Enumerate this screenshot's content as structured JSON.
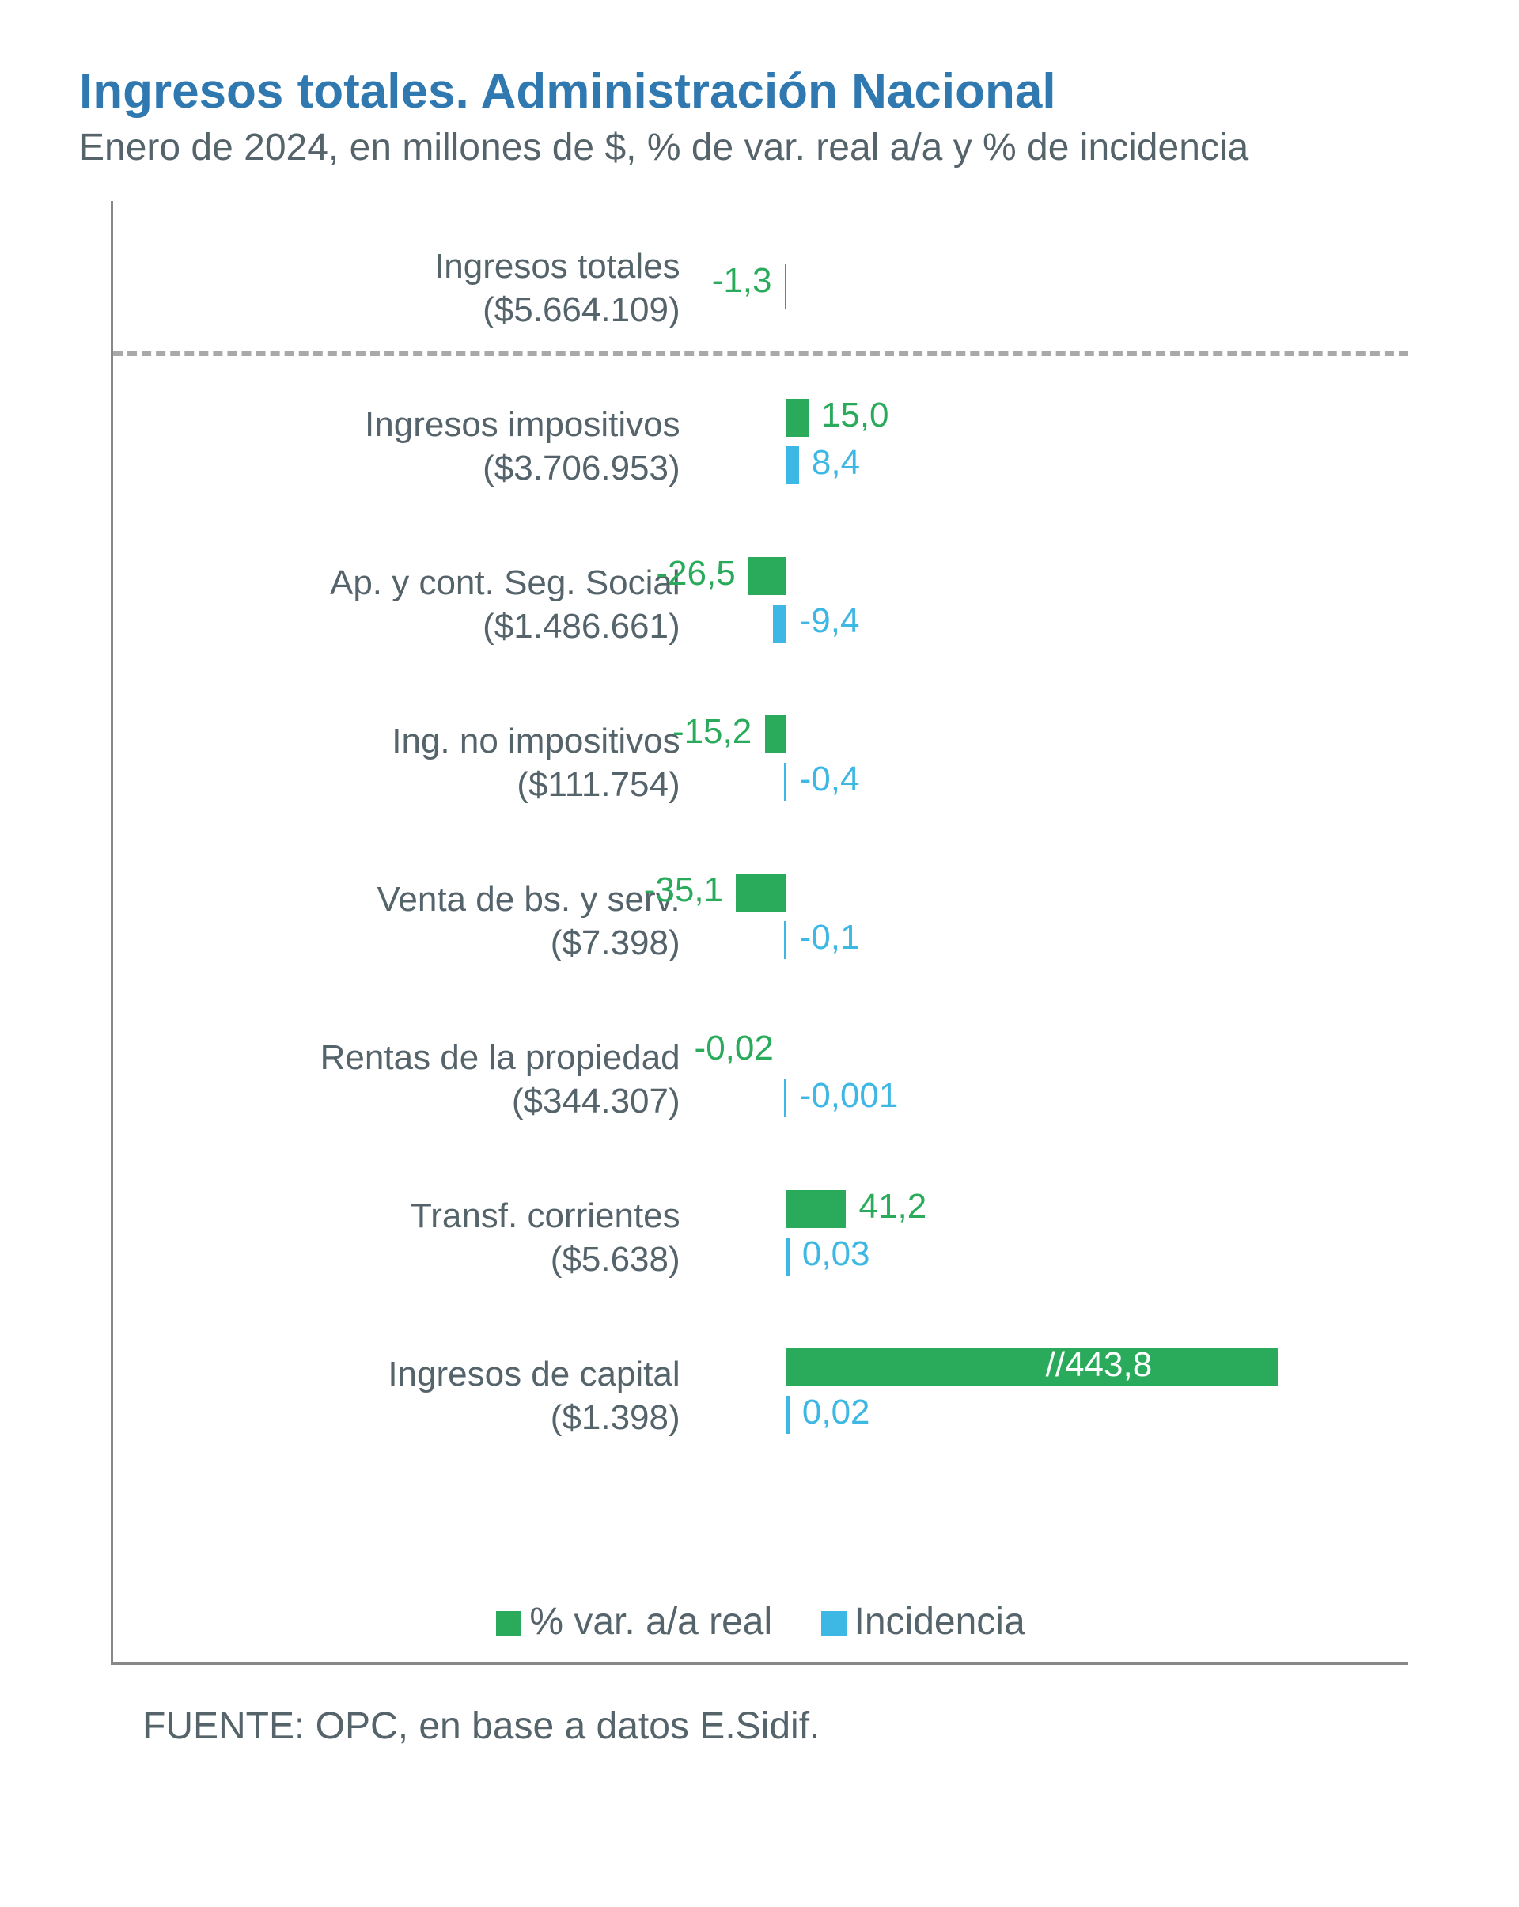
{
  "title": "Ingresos totales. Administración Nacional",
  "subtitle": "Enero de 2024, en millones de $, % de var. real a/a y % de incidencia",
  "source_prefix": "FUENTE: ",
  "source_text": "OPC, en base a datos E.Sidif.",
  "colors": {
    "title": "#2f78b0",
    "subtitle": "#55636b",
    "label_text": "#55636b",
    "var_bar": "#2aab5b",
    "inc_bar": "#3db7e4",
    "var_text": "#2aab5b",
    "inc_text": "#3db7e4",
    "axis": "#888888",
    "dashed": "#a9a9a9",
    "source": "#55636b",
    "legend_text": "#55636b"
  },
  "legend": {
    "var_label": "% var. a/a real",
    "inc_label": "Incidencia"
  },
  "chart": {
    "type": "grouped-horizontal-bar",
    "axis_zero_pct_from_left": 52,
    "scale_units_per_pct": 9,
    "max_bar_pct": 38,
    "rows": [
      {
        "label_line1": "Ingresos totales",
        "label_line2": "($5.664.109)",
        "var_value": -1.3,
        "var_display": "-1,3",
        "inc_value": null,
        "inc_display": "",
        "separator_after": true,
        "break_bar": false
      },
      {
        "label_line1": "Ingresos impositivos",
        "label_line2": "($3.706.953)",
        "var_value": 15.0,
        "var_display": "15,0",
        "inc_value": 8.4,
        "inc_display": "8,4",
        "separator_after": false,
        "break_bar": false
      },
      {
        "label_line1": "Ap. y cont. Seg. Social",
        "label_line2": "($1.486.661)",
        "var_value": -26.5,
        "var_display": "-26,5",
        "inc_value": -9.4,
        "inc_display": "-9,4",
        "separator_after": false,
        "break_bar": false
      },
      {
        "label_line1": "Ing. no impositivos",
        "label_line2": "($111.754)",
        "var_value": -15.2,
        "var_display": "-15,2",
        "inc_value": -0.4,
        "inc_display": "-0,4",
        "separator_after": false,
        "break_bar": false
      },
      {
        "label_line1": "Venta de bs. y serv.",
        "label_line2": "($7.398)",
        "var_value": -35.1,
        "var_display": "-35,1",
        "inc_value": -0.1,
        "inc_display": "-0,1",
        "separator_after": false,
        "break_bar": false
      },
      {
        "label_line1": "Rentas de la propiedad",
        "label_line2": "($344.307)",
        "var_value": -0.02,
        "var_display": "-0,02",
        "inc_value": -0.001,
        "inc_display": "-0,001",
        "separator_after": false,
        "break_bar": false
      },
      {
        "label_line1": "Transf. corrientes",
        "label_line2": "($5.638)",
        "var_value": 41.2,
        "var_display": "41,2",
        "inc_value": 0.03,
        "inc_display": "0,03",
        "separator_after": false,
        "break_bar": false
      },
      {
        "label_line1": "Ingresos de capital",
        "label_line2": "($1.398)",
        "var_value": 443.8,
        "var_display": "//443,8",
        "inc_value": 0.02,
        "inc_display": "0,02",
        "separator_after": false,
        "break_bar": true
      }
    ]
  }
}
